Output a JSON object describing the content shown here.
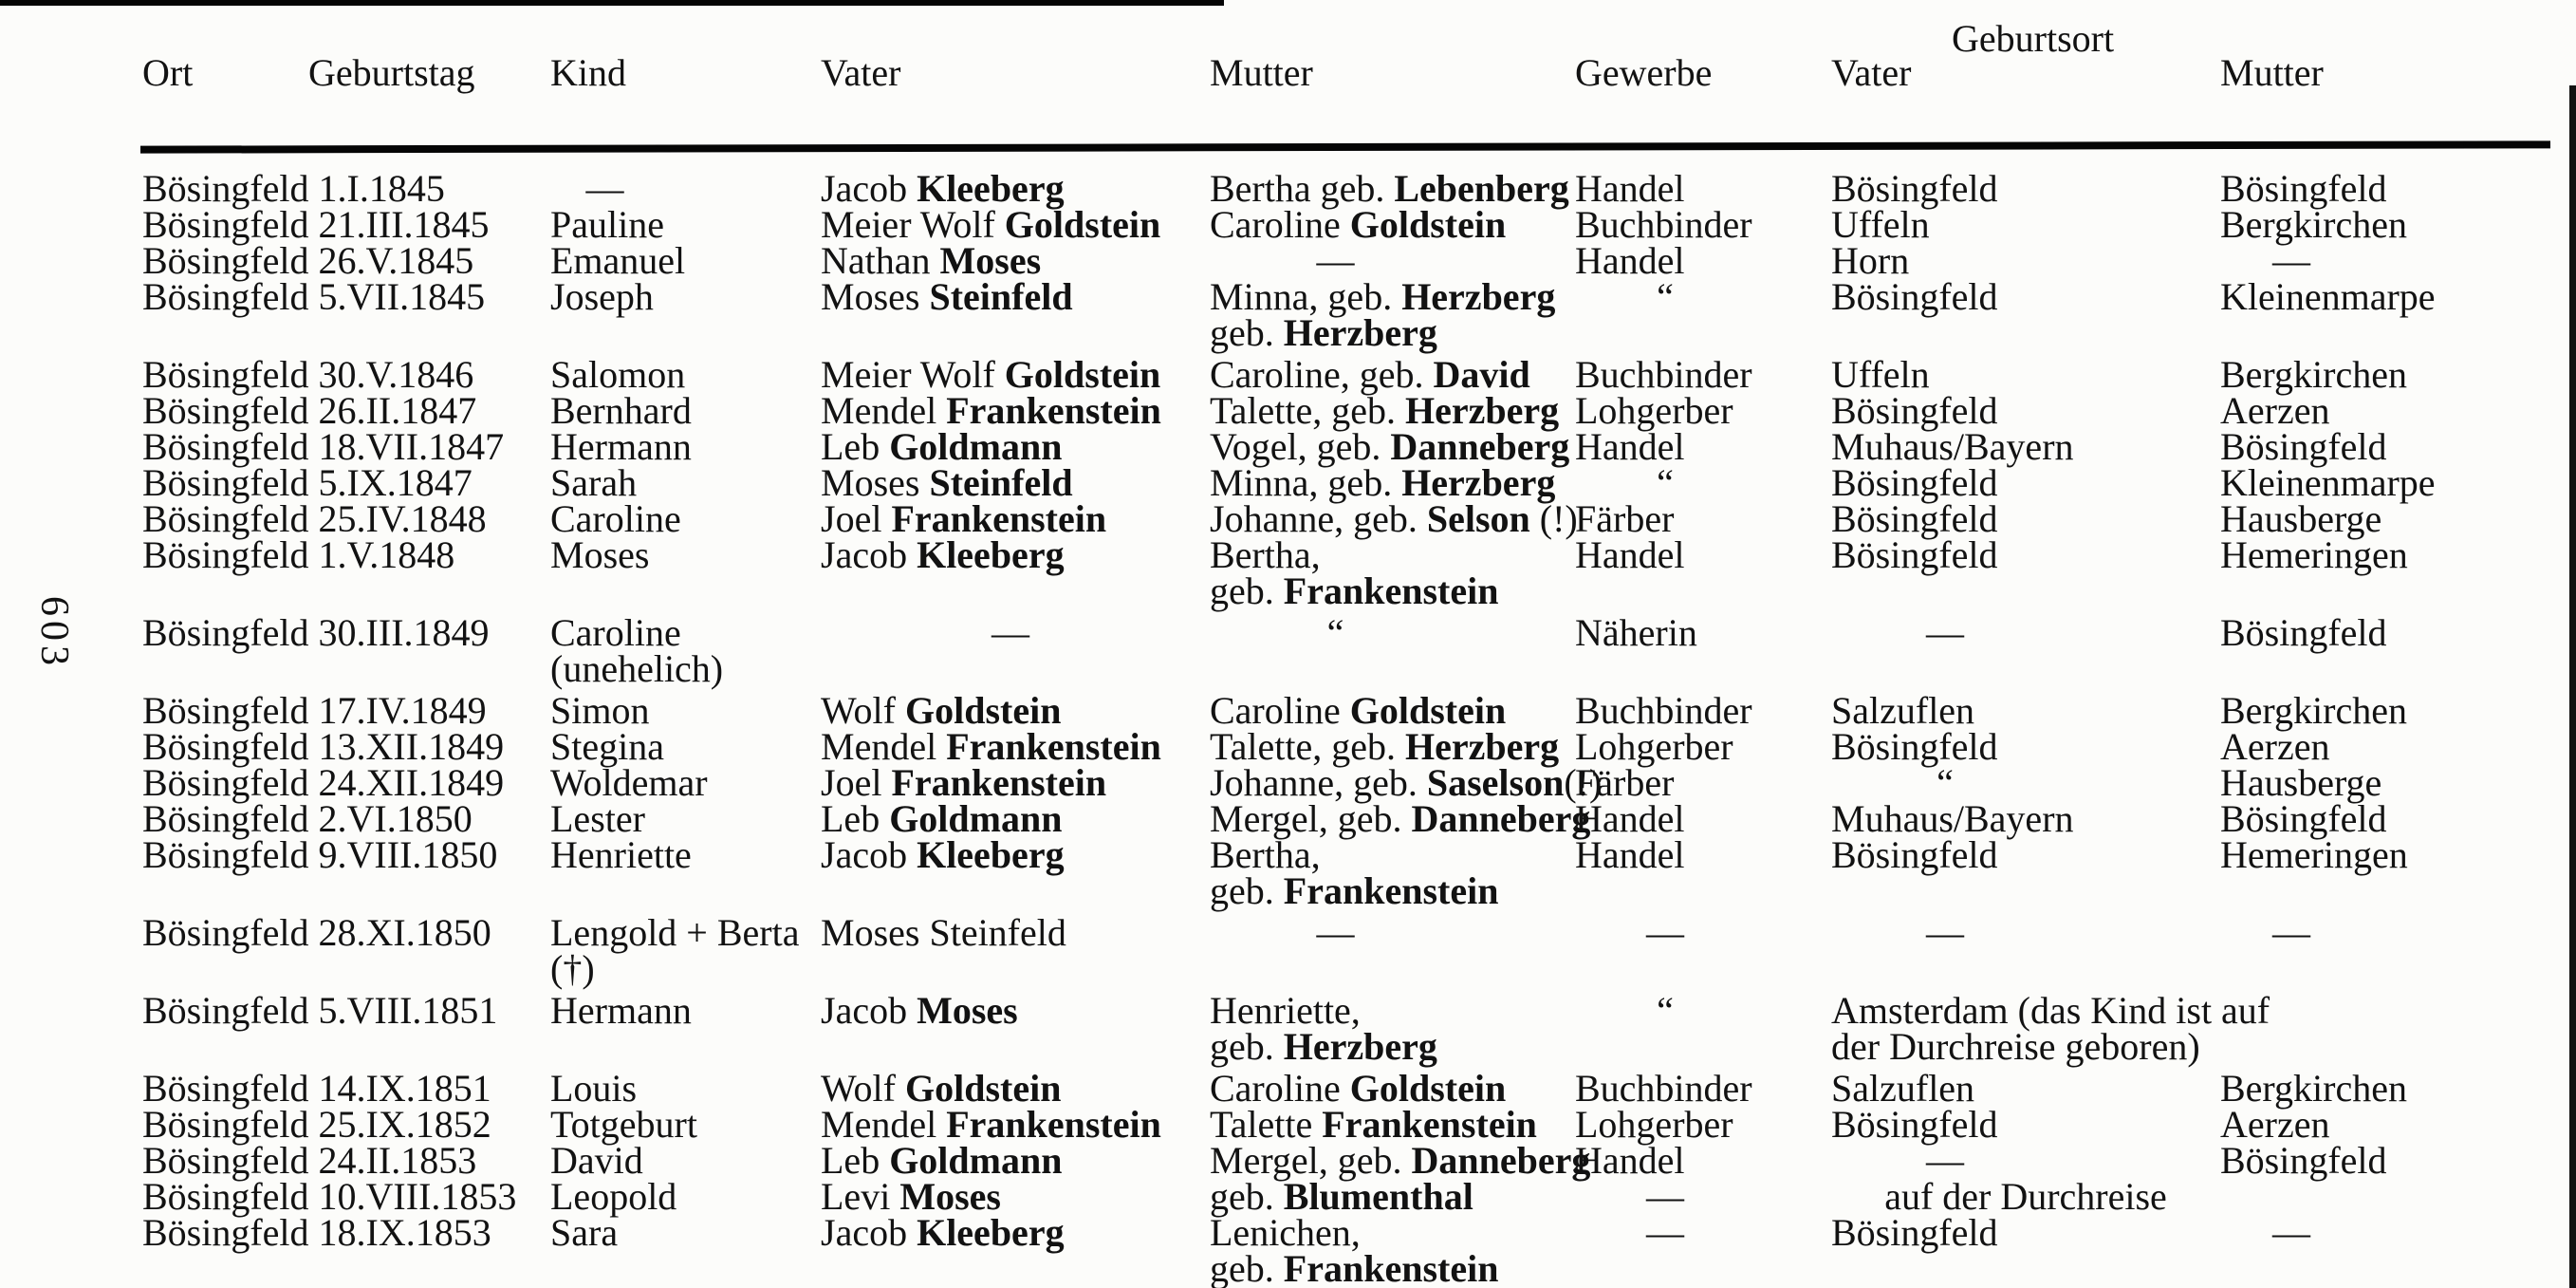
{
  "page": {
    "number": "603"
  },
  "header": {
    "geburtsort_group": "Geburtsort",
    "ort": "Ort",
    "geburtstag": "Geburtstag",
    "kind": "Kind",
    "vater": "Vater",
    "mutter": "Mutter",
    "gewerbe": "Gewerbe",
    "geb_vater": "Vater",
    "geb_mutter": "Mutter"
  },
  "table": {
    "groups": [
      {
        "rows": [
          {
            "ort": "Bösingfeld 1.I.1845",
            "kind": "—",
            "vater": "Jacob **Kleeberg**",
            "mutter": "Bertha geb. **Lebenberg**",
            "gewerbe": "Handel",
            "geb_vater": "Bösingfeld",
            "geb_mutter": "Bösingfeld"
          },
          {
            "ort": "Bösingfeld 21.III.1845",
            "kind": "Pauline",
            "vater": "Meier Wolf **Goldstein**",
            "mutter": "Caroline **Goldstein**",
            "gewerbe": "Buchbinder",
            "geb_vater": "Uffeln",
            "geb_mutter": "Bergkirchen"
          },
          {
            "ort": "Bösingfeld 26.V.1845",
            "kind": "Emanuel",
            "vater": "Nathan **Moses**",
            "mutter": "—",
            "gewerbe": "Handel",
            "geb_vater": "Horn",
            "geb_mutter": "—"
          },
          {
            "ort": "Bösingfeld 5.VII.1845",
            "kind": "Joseph",
            "vater": "Moses **Steinfeld**",
            "mutter": "Minna, geb. **Herzberg**\ngeb. **Herzberg**",
            "gewerbe": "“",
            "geb_vater": "Bösingfeld",
            "geb_mutter": "Kleinenmarpe"
          }
        ]
      },
      {
        "rows": [
          {
            "ort": "Bösingfeld 30.V.1846",
            "kind": "Salomon",
            "vater": "Meier Wolf **Goldstein**",
            "mutter": "Caroline, geb. **David**",
            "gewerbe": "Buchbinder",
            "geb_vater": "Uffeln",
            "geb_mutter": "Bergkirchen"
          },
          {
            "ort": "Bösingfeld 26.II.1847",
            "kind": "Bernhard",
            "vater": "Mendel **Frankenstein**",
            "mutter": "Talette, geb. **Herzberg**",
            "gewerbe": "Lohgerber",
            "geb_vater": "Bösingfeld",
            "geb_mutter": "Aerzen"
          },
          {
            "ort": "Bösingfeld 18.VII.1847",
            "kind": "Hermann",
            "vater": "Leb **Goldmann**",
            "mutter": "Vogel, geb. **Danneberg**",
            "gewerbe": "Handel",
            "geb_vater": "Muhaus/Bayern",
            "geb_mutter": "Bösingfeld"
          },
          {
            "ort": "Bösingfeld 5.IX.1847",
            "kind": "Sarah",
            "vater": "Moses **Steinfeld**",
            "mutter": "Minna, geb. **Herzberg**",
            "gewerbe": "“",
            "geb_vater": "Bösingfeld",
            "geb_mutter": "Kleinenmarpe"
          },
          {
            "ort": "Bösingfeld 25.IV.1848",
            "kind": "Caroline",
            "vater": "Joel **Frankenstein**",
            "mutter": "Johanne, geb. **Selson** (!)",
            "gewerbe": "Färber",
            "geb_vater": "Bösingfeld",
            "geb_mutter": "Hausberge"
          },
          {
            "ort": "Bösingfeld 1.V.1848",
            "kind": "Moses",
            "vater": "Jacob **Kleeberg**",
            "mutter": "Bertha,\ngeb. **Frankenstein**",
            "gewerbe": "Handel",
            "geb_vater": "Bösingfeld",
            "geb_mutter": "Hemeringen"
          }
        ]
      },
      {
        "rows": [
          {
            "ort": "Bösingfeld 30.III.1849",
            "kind": "Caroline\n(unehelich)",
            "vater": "—",
            "mutter": "“",
            "gewerbe": "Näherin",
            "geb_vater": "—",
            "geb_mutter": "Bösingfeld"
          }
        ]
      },
      {
        "rows": [
          {
            "ort": "Bösingfeld 17.IV.1849",
            "kind": "Simon",
            "vater": "Wolf **Goldstein**",
            "mutter": "Caroline **Goldstein**",
            "gewerbe": "Buchbinder",
            "geb_vater": "Salzuflen",
            "geb_mutter": "Bergkirchen"
          },
          {
            "ort": "Bösingfeld 13.XII.1849",
            "kind": "Stegina",
            "vater": "Mendel **Frankenstein**",
            "mutter": "Talette, geb. **Herzberg**",
            "gewerbe": "Lohgerber",
            "geb_vater": "Bösingfeld",
            "geb_mutter": "Aerzen"
          },
          {
            "ort": "Bösingfeld 24.XII.1849",
            "kind": "Woldemar",
            "vater": "Joel **Frankenstein**",
            "mutter": "Johanne, geb. **Saselson**(!)",
            "gewerbe": "Färber",
            "geb_vater": "“",
            "geb_mutter": "Hausberge"
          },
          {
            "ort": "Bösingfeld 2.VI.1850",
            "kind": "Lester",
            "vater": "Leb **Goldmann**",
            "mutter": "Mergel, geb. **Danneberg**",
            "gewerbe": "Handel",
            "geb_vater": "Muhaus/Bayern",
            "geb_mutter": "Bösingfeld"
          },
          {
            "ort": "Bösingfeld 9.VIII.1850",
            "kind": "Henriette",
            "vater": "Jacob **Kleeberg**",
            "mutter": "Bertha,\ngeb. **Frankenstein**",
            "gewerbe": "Handel",
            "geb_vater": "Bösingfeld",
            "geb_mutter": "Hemeringen"
          }
        ]
      },
      {
        "rows": [
          {
            "ort": "Bösingfeld 28.XI.1850",
            "kind": "Lengold + Berta\n(†)",
            "vater": "Moses Steinfeld",
            "mutter": "—",
            "gewerbe": "—",
            "geb_vater": "—",
            "geb_mutter": "—"
          }
        ]
      },
      {
        "rows": [
          {
            "ort": "Bösingfeld 5.VIII.1851",
            "kind": "Hermann",
            "vater": "Jacob **Moses**",
            "mutter": "Henriette,\ngeb. **Herzberg**",
            "gewerbe": "“",
            "geb_span": "Amsterdam (das Kind ist auf\nder Durchreise geboren)"
          }
        ]
      },
      {
        "rows": [
          {
            "ort": "Bösingfeld 14.IX.1851",
            "kind": "Louis",
            "vater": "Wolf **Goldstein**",
            "mutter": "Caroline **Goldstein**",
            "gewerbe": "Buchbinder",
            "geb_vater": "Salzuflen",
            "geb_mutter": "Bergkirchen"
          },
          {
            "ort": "Bösingfeld 25.IX.1852",
            "kind": "Totgeburt",
            "vater": "Mendel **Frankenstein**",
            "mutter": "Talette **Frankenstein**",
            "gewerbe": "Lohgerber",
            "geb_vater": "Bösingfeld",
            "geb_mutter": "Aerzen"
          },
          {
            "ort": "Bösingfeld 24.II.1853",
            "kind": "David",
            "vater": "Leb **Goldmann**",
            "mutter": "Mergel, geb. **Danneberg**",
            "gewerbe": "Handel",
            "geb_vater": "—",
            "geb_mutter": "Bösingfeld"
          },
          {
            "ort": "Bösingfeld 10.VIII.1853",
            "kind": "Leopold",
            "vater": "Levi **Moses**",
            "mutter": "geb. **Blumenthal**",
            "gewerbe": "—",
            "geb_vater": "auf der Durchreise",
            "geb_mutter": "",
            "centered": [
              "geb_vater"
            ]
          },
          {
            "ort": "Bösingfeld 18.IX.1853",
            "kind": "Sara",
            "vater": "Jacob **Kleeberg**",
            "mutter": "Lenichen,\ngeb. **Frankenstein**",
            "gewerbe": "—",
            "geb_vater": "Bösingfeld",
            "geb_mutter": "—"
          }
        ]
      }
    ]
  }
}
